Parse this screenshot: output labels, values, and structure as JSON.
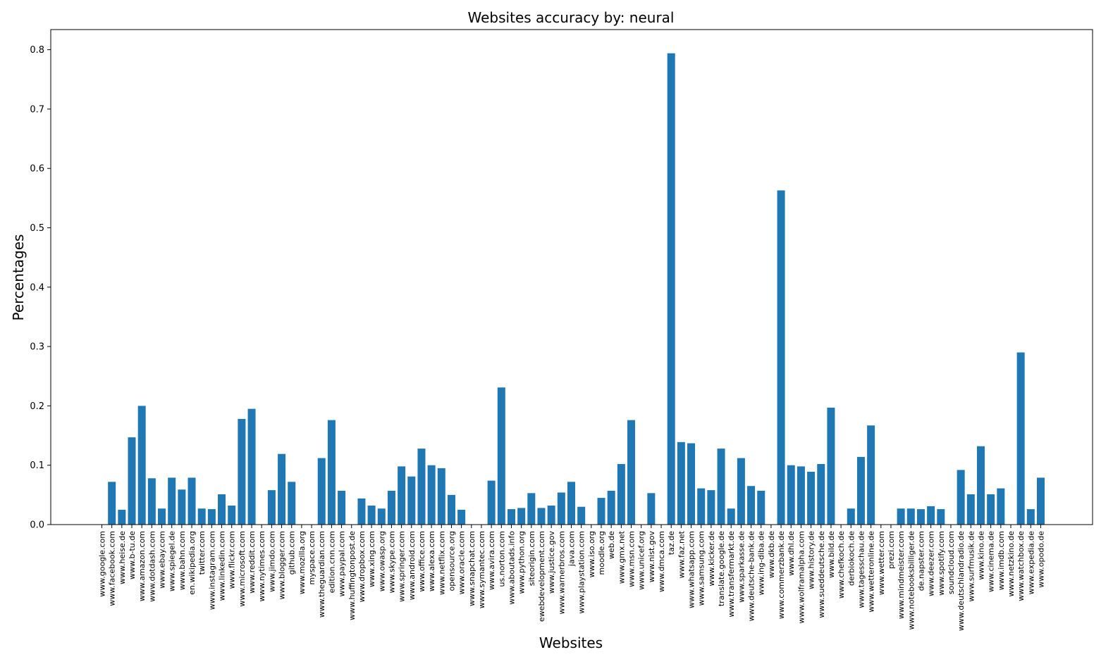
{
  "chart_data": {
    "type": "bar",
    "title": "Websites accuracy by: neural",
    "xlabel": "Websites",
    "ylabel": "Percentages",
    "ylim": [
      0,
      0.835
    ],
    "yticks": [
      "0.0",
      "0.1",
      "0.2",
      "0.3",
      "0.4",
      "0.5",
      "0.6",
      "0.7",
      "0.8"
    ],
    "bar_color": "#1f77b4",
    "grid": false,
    "categories": [
      "www.google.com",
      "www.facebook.com",
      "www.heise.de",
      "www.b-tu.de",
      "www.amazon.com",
      "www.dotdash.com",
      "www.ebay.com",
      "www.spiegel.de",
      "www.bahn.com",
      "en.wikipedia.org",
      "twitter.com",
      "www.instagram.com",
      "www.linkedin.com",
      "www.flickr.com",
      "www.microsoft.com",
      "www.reddit.com",
      "www.nytimes.com",
      "www.jimdo.com",
      "www.blogger.com",
      "github.com",
      "www.mozilla.org",
      "myspace.com",
      "www.theguardian.com",
      "edition.cnn.com",
      "www.paypal.com",
      "www.huffingtonpost.de",
      "www.dropbox.com",
      "www.xing.com",
      "www.owasp.org",
      "www.skype.com",
      "www.springer.com",
      "www.android.com",
      "www.office.com",
      "www.alexa.com",
      "www.netflix.com",
      "opensource.org",
      "www.oracle.com",
      "www.snapchat.com",
      "www.symantec.com",
      "www.avira.com",
      "us.norton.com",
      "www.aboutads.info",
      "www.python.org",
      "siteorigin.com",
      "ewebdevelopment.com",
      "www.justice.gov",
      "www.warnerbros.com",
      "java.com",
      "www.playstation.com",
      "www.iso.org",
      "moodle.org",
      "web.de",
      "www.gmx.net",
      "www.msn.com",
      "www.unicef.org",
      "www.nist.gov",
      "www.dmca.com",
      "taz.de",
      "www.faz.net",
      "www.whatsapp.com",
      "www.samsung.com",
      "www.kicker.de",
      "translate.google.de",
      "www.transfermarkt.de",
      "www.sparkasse.de",
      "www.deutsche-bank.de",
      "www.ing-diba.de",
      "www.dkb.de",
      "www.commerzbank.de",
      "www.dhl.de",
      "www.wolframalpha.com",
      "www.history.de",
      "www.sueddeutsche.de",
      "www.bild.de",
      "www.chefkoch.de",
      "derbiokoch.de",
      "www.tagesschau.de",
      "www.wetteronline.de",
      "www.wetter.com",
      "prezi.com",
      "www.mindmeister.com",
      "www.notebooksbilliger.de",
      "de.napster.com",
      "www.deezer.com",
      "www.spotify.com",
      "soundcloud.com",
      "www.deutschlandradio.de",
      "www.surfmusik.de",
      "www.kino.de",
      "www.cinema.de",
      "www.imdb.com",
      "www.netzkino.de",
      "www.watchbox.de",
      "www.expedia.de",
      "www.opodo.de"
    ],
    "values": [
      0.0,
      0.072,
      0.025,
      0.147,
      0.2,
      0.078,
      0.027,
      0.079,
      0.059,
      0.079,
      0.027,
      0.026,
      0.051,
      0.032,
      0.178,
      0.195,
      0.0,
      0.058,
      0.119,
      0.072,
      0.0,
      0.0,
      0.112,
      0.176,
      0.057,
      0.0,
      0.044,
      0.032,
      0.027,
      0.057,
      0.098,
      0.081,
      0.128,
      0.1,
      0.095,
      0.05,
      0.025,
      0.0,
      0.0,
      0.074,
      0.231,
      0.026,
      0.028,
      0.053,
      0.028,
      0.032,
      0.054,
      0.072,
      0.03,
      0.0,
      0.045,
      0.057,
      0.102,
      0.176,
      0.0,
      0.053,
      0.0,
      0.794,
      0.139,
      0.137,
      0.061,
      0.058,
      0.128,
      0.027,
      0.112,
      0.065,
      0.057,
      0.0,
      0.563,
      0.1,
      0.098,
      0.089,
      0.102,
      0.197,
      0.0,
      0.027,
      0.114,
      0.167,
      0.0,
      0.0,
      0.027,
      0.027,
      0.026,
      0.031,
      0.026,
      0.0,
      0.092,
      0.051,
      0.132,
      0.051,
      0.061,
      0.0,
      0.29,
      0.026,
      0.079
    ]
  }
}
